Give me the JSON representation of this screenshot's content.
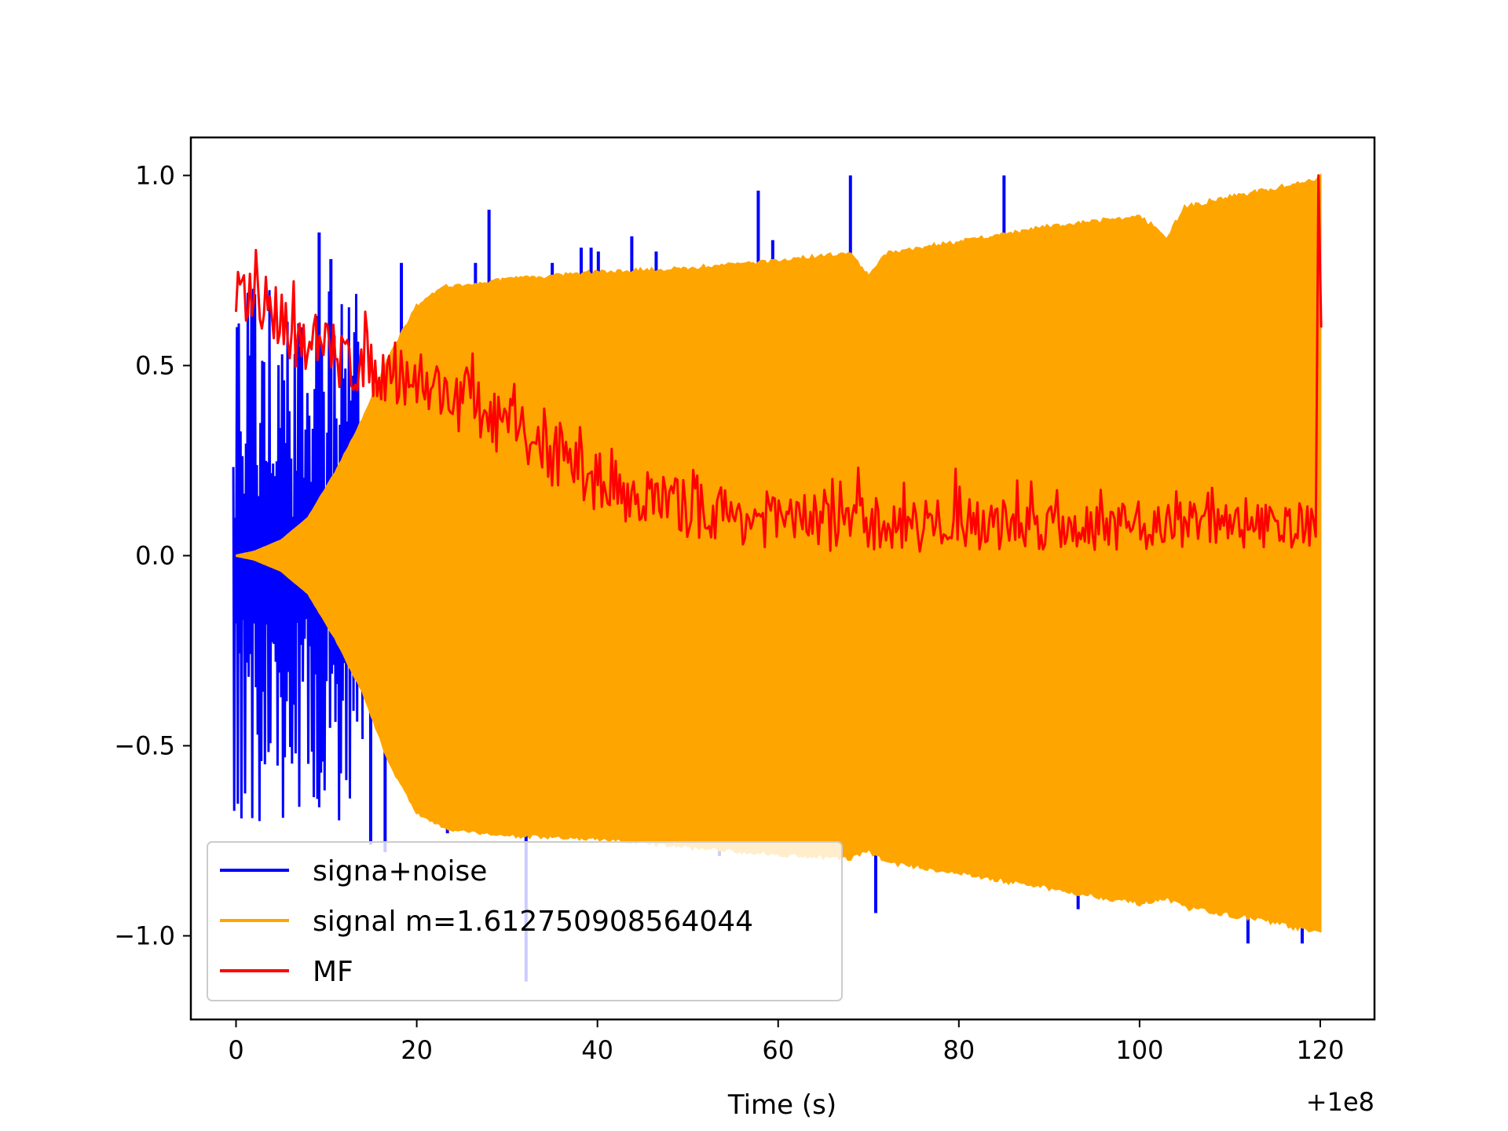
{
  "chart_data": {
    "type": "line",
    "title": "",
    "xlabel": "Time (s)",
    "ylabel": "",
    "x_offset_label": "+1e8",
    "xlim": [
      -5,
      126
    ],
    "ylim": [
      -1.22,
      1.1
    ],
    "xticks": [
      0,
      20,
      40,
      60,
      80,
      100,
      120
    ],
    "xtick_labels": [
      "0",
      "20",
      "40",
      "60",
      "80",
      "100",
      "120"
    ],
    "yticks": [
      1.0,
      0.5,
      0.0,
      -0.5,
      -1.0
    ],
    "ytick_labels": [
      "1.0",
      "0.5",
      "0.0",
      "−0.5",
      "−1.0"
    ],
    "grid": false,
    "legend_position": "lower-left",
    "series": [
      {
        "name": "signa+noise",
        "color": "#0000ff",
        "spikes": [
          {
            "x": 9.2,
            "y": 0.85
          },
          {
            "x": 10.5,
            "y": 0.78
          },
          {
            "x": 14.9,
            "y": -0.76
          },
          {
            "x": 16.5,
            "y": -0.78
          },
          {
            "x": 18.3,
            "y": 0.77
          },
          {
            "x": 23.4,
            "y": -0.73
          },
          {
            "x": 26.5,
            "y": 0.77
          },
          {
            "x": 28.0,
            "y": 0.91
          },
          {
            "x": 32.1,
            "y": -1.12
          },
          {
            "x": 35.0,
            "y": 0.77
          },
          {
            "x": 38.2,
            "y": 0.81
          },
          {
            "x": 39.3,
            "y": 0.81
          },
          {
            "x": 40.1,
            "y": 0.8
          },
          {
            "x": 43.8,
            "y": 0.84
          },
          {
            "x": 46.5,
            "y": 0.8
          },
          {
            "x": 53.5,
            "y": -0.79
          },
          {
            "x": 57.8,
            "y": 0.96
          },
          {
            "x": 59.4,
            "y": 0.83
          },
          {
            "x": 68.0,
            "y": 1.0
          },
          {
            "x": 70.8,
            "y": -0.94
          },
          {
            "x": 85.0,
            "y": 1.0
          },
          {
            "x": 93.2,
            "y": -0.93
          },
          {
            "x": 112.0,
            "y": -1.02
          },
          {
            "x": 118.0,
            "y": -1.02
          }
        ]
      },
      {
        "name": "signal m=1.612750908564044",
        "color": "#ffa500",
        "envelope": [
          {
            "x": 0,
            "upper": 0.0,
            "lower": 0.0
          },
          {
            "x": 2,
            "upper": 0.01,
            "lower": -0.01
          },
          {
            "x": 5,
            "upper": 0.04,
            "lower": -0.04
          },
          {
            "x": 8,
            "upper": 0.1,
            "lower": -0.1
          },
          {
            "x": 11,
            "upper": 0.22,
            "lower": -0.22
          },
          {
            "x": 14,
            "upper": 0.36,
            "lower": -0.36
          },
          {
            "x": 17,
            "upper": 0.53,
            "lower": -0.55
          },
          {
            "x": 20,
            "upper": 0.66,
            "lower": -0.68
          },
          {
            "x": 23,
            "upper": 0.71,
            "lower": -0.72
          },
          {
            "x": 26,
            "upper": 0.72,
            "lower": -0.73
          },
          {
            "x": 30,
            "upper": 0.73,
            "lower": -0.74
          },
          {
            "x": 40,
            "upper": 0.75,
            "lower": -0.75
          },
          {
            "x": 50,
            "upper": 0.76,
            "lower": -0.77
          },
          {
            "x": 60,
            "upper": 0.78,
            "lower": -0.79
          },
          {
            "x": 68,
            "upper": 0.8,
            "lower": -0.8
          },
          {
            "x": 70,
            "upper": 0.74,
            "lower": -0.78
          },
          {
            "x": 72,
            "upper": 0.8,
            "lower": -0.81
          },
          {
            "x": 80,
            "upper": 0.83,
            "lower": -0.84
          },
          {
            "x": 90,
            "upper": 0.87,
            "lower": -0.88
          },
          {
            "x": 100,
            "upper": 0.9,
            "lower": -0.92
          },
          {
            "x": 103,
            "upper": 0.84,
            "lower": -0.91
          },
          {
            "x": 105,
            "upper": 0.92,
            "lower": -0.93
          },
          {
            "x": 110,
            "upper": 0.95,
            "lower": -0.95
          },
          {
            "x": 115,
            "upper": 0.97,
            "lower": -0.97
          },
          {
            "x": 120,
            "upper": 1.0,
            "lower": -1.0
          }
        ]
      },
      {
        "name": "MF",
        "color": "#ff0000",
        "trend": [
          {
            "x": 0,
            "y": 0.66
          },
          {
            "x": 2,
            "y": 0.62
          },
          {
            "x": 5,
            "y": 0.57
          },
          {
            "x": 8,
            "y": 0.54
          },
          {
            "x": 11,
            "y": 0.5
          },
          {
            "x": 15,
            "y": 0.47
          },
          {
            "x": 20,
            "y": 0.44
          },
          {
            "x": 25,
            "y": 0.38
          },
          {
            "x": 30,
            "y": 0.31
          },
          {
            "x": 35,
            "y": 0.24
          },
          {
            "x": 40,
            "y": 0.17
          },
          {
            "x": 45,
            "y": 0.13
          },
          {
            "x": 50,
            "y": 0.1
          },
          {
            "x": 60,
            "y": 0.07
          },
          {
            "x": 70,
            "y": 0.06
          },
          {
            "x": 80,
            "y": 0.06
          },
          {
            "x": 90,
            "y": 0.06
          },
          {
            "x": 100,
            "y": 0.06
          },
          {
            "x": 110,
            "y": 0.06
          },
          {
            "x": 119,
            "y": 0.06
          }
        ],
        "end_spike": {
          "x": 119.8,
          "y": 1.0
        }
      }
    ]
  }
}
